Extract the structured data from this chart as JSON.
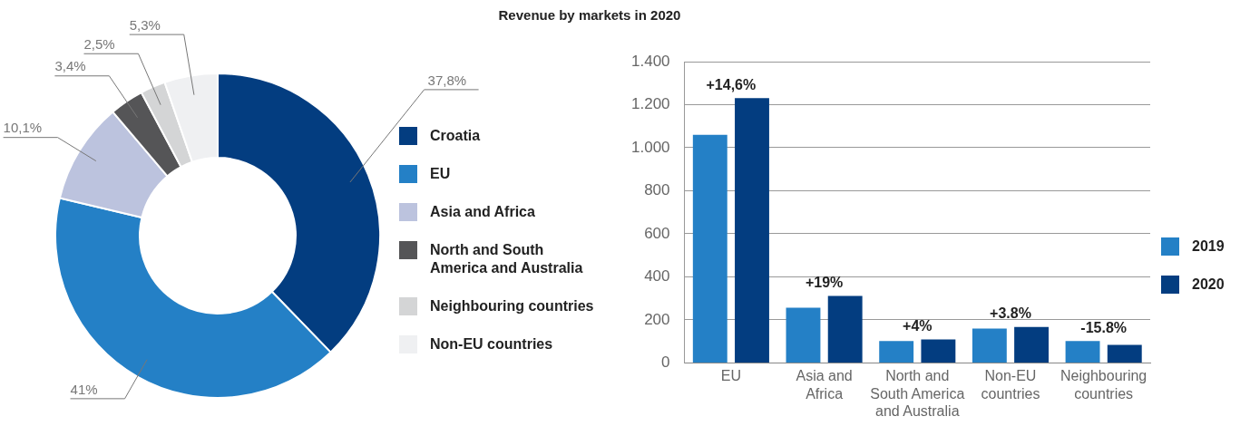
{
  "chart_data": [
    {
      "type": "donut",
      "title": "Revenue by markets in 2020",
      "categories": [
        "Croatia",
        "EU",
        "Asia and Africa",
        "North and South America and Australia",
        "Neighbouring countries",
        "Non-EU countries"
      ],
      "values": [
        37.8,
        41,
        10.1,
        3.4,
        2.5,
        5.3
      ],
      "value_labels": [
        "37,8%",
        "41%",
        "10,1%",
        "3,4%",
        "2,5%",
        "5,3%"
      ],
      "colors": [
        "#033d80",
        "#2480c6",
        "#bcc3de",
        "#555557",
        "#d4d5d6",
        "#eff0f2"
      ],
      "legend": "right"
    },
    {
      "type": "bar",
      "categories": [
        "EU",
        "Asia and Africa",
        "North and South America and Australia",
        "Non-EU countries",
        "Neighbouring countries"
      ],
      "series": [
        {
          "name": "2019",
          "color": "#2480c6",
          "values": [
            1060,
            256,
            102,
            160,
            102
          ]
        },
        {
          "name": "2020",
          "color": "#033d80",
          "values": [
            1230,
            311,
            109,
            167,
            84
          ]
        }
      ],
      "ylim": [
        0,
        1400
      ],
      "yticks": [
        0,
        200,
        400,
        600,
        800,
        {
          "value": 1000,
          "label": "1.000"
        },
        {
          "value": 1200,
          "label": "1.200"
        },
        {
          "value": 1400,
          "label": "1.400"
        }
      ],
      "annotations": [
        {
          "text": "+14,6%",
          "x": "EU",
          "y": 1230
        },
        {
          "text": "+19%",
          "x": "Asia and Africa",
          "y": 311
        },
        {
          "text": "+4%",
          "x": "North and South America and Australia",
          "y": 109
        },
        {
          "text": "+3.8%",
          "x": "Non-EU countries",
          "y": 167
        },
        {
          "text": "-15.8%",
          "x": "Neighbouring countries",
          "y": 102
        }
      ],
      "grid": "y",
      "legend": "right"
    }
  ]
}
